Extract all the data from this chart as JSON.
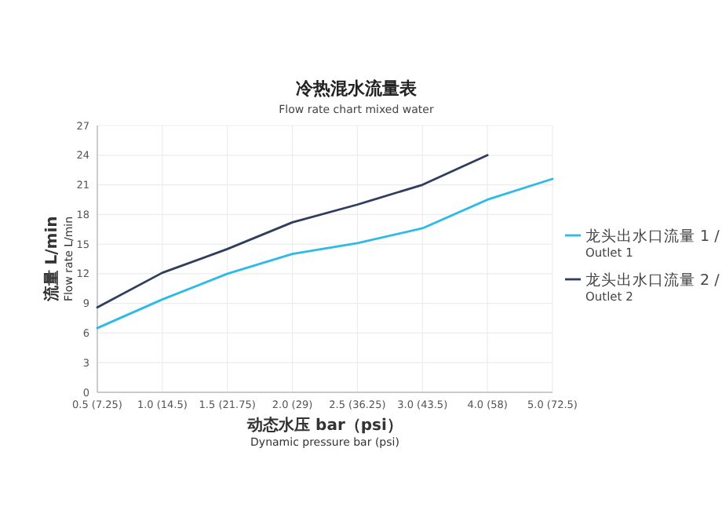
{
  "chart_data": {
    "type": "line",
    "title": "冷热混水流量表",
    "subtitle": "Flow rate chart mixed water",
    "xlabel": "动态水压 bar（psi）\nDynamic pressure bar (psi)",
    "ylabel": "流量 L/min\nFlow rate L/min",
    "categories": [
      "0.5 (7.25)",
      "1.0 (14.5)",
      "1.5 (21.75)",
      "2.0 (29)",
      "2.5 (36.25)",
      "3.0 (43.5)",
      "4.0 (58)",
      "5.0 (72.5)"
    ],
    "series": [
      {
        "name": "龙头出水口流量 1 / Outlet 1",
        "color": "#2bbbe6",
        "values": [
          6.5,
          9.4,
          12,
          14,
          15.1,
          16.6,
          19.5,
          21.6
        ]
      },
      {
        "name": "龙头出水口流量 2 / Outlet 2",
        "color": "#2f3d5e",
        "values": [
          8.6,
          12.1,
          14.5,
          17.2,
          19,
          21,
          24,
          null
        ]
      }
    ],
    "ylim": [
      0,
      27
    ],
    "yticks": [
      0,
      3,
      6,
      9,
      12,
      15,
      18,
      21,
      24,
      27
    ],
    "grid": true,
    "legend": "right",
    "marker": "none",
    "line_style": "solid"
  }
}
